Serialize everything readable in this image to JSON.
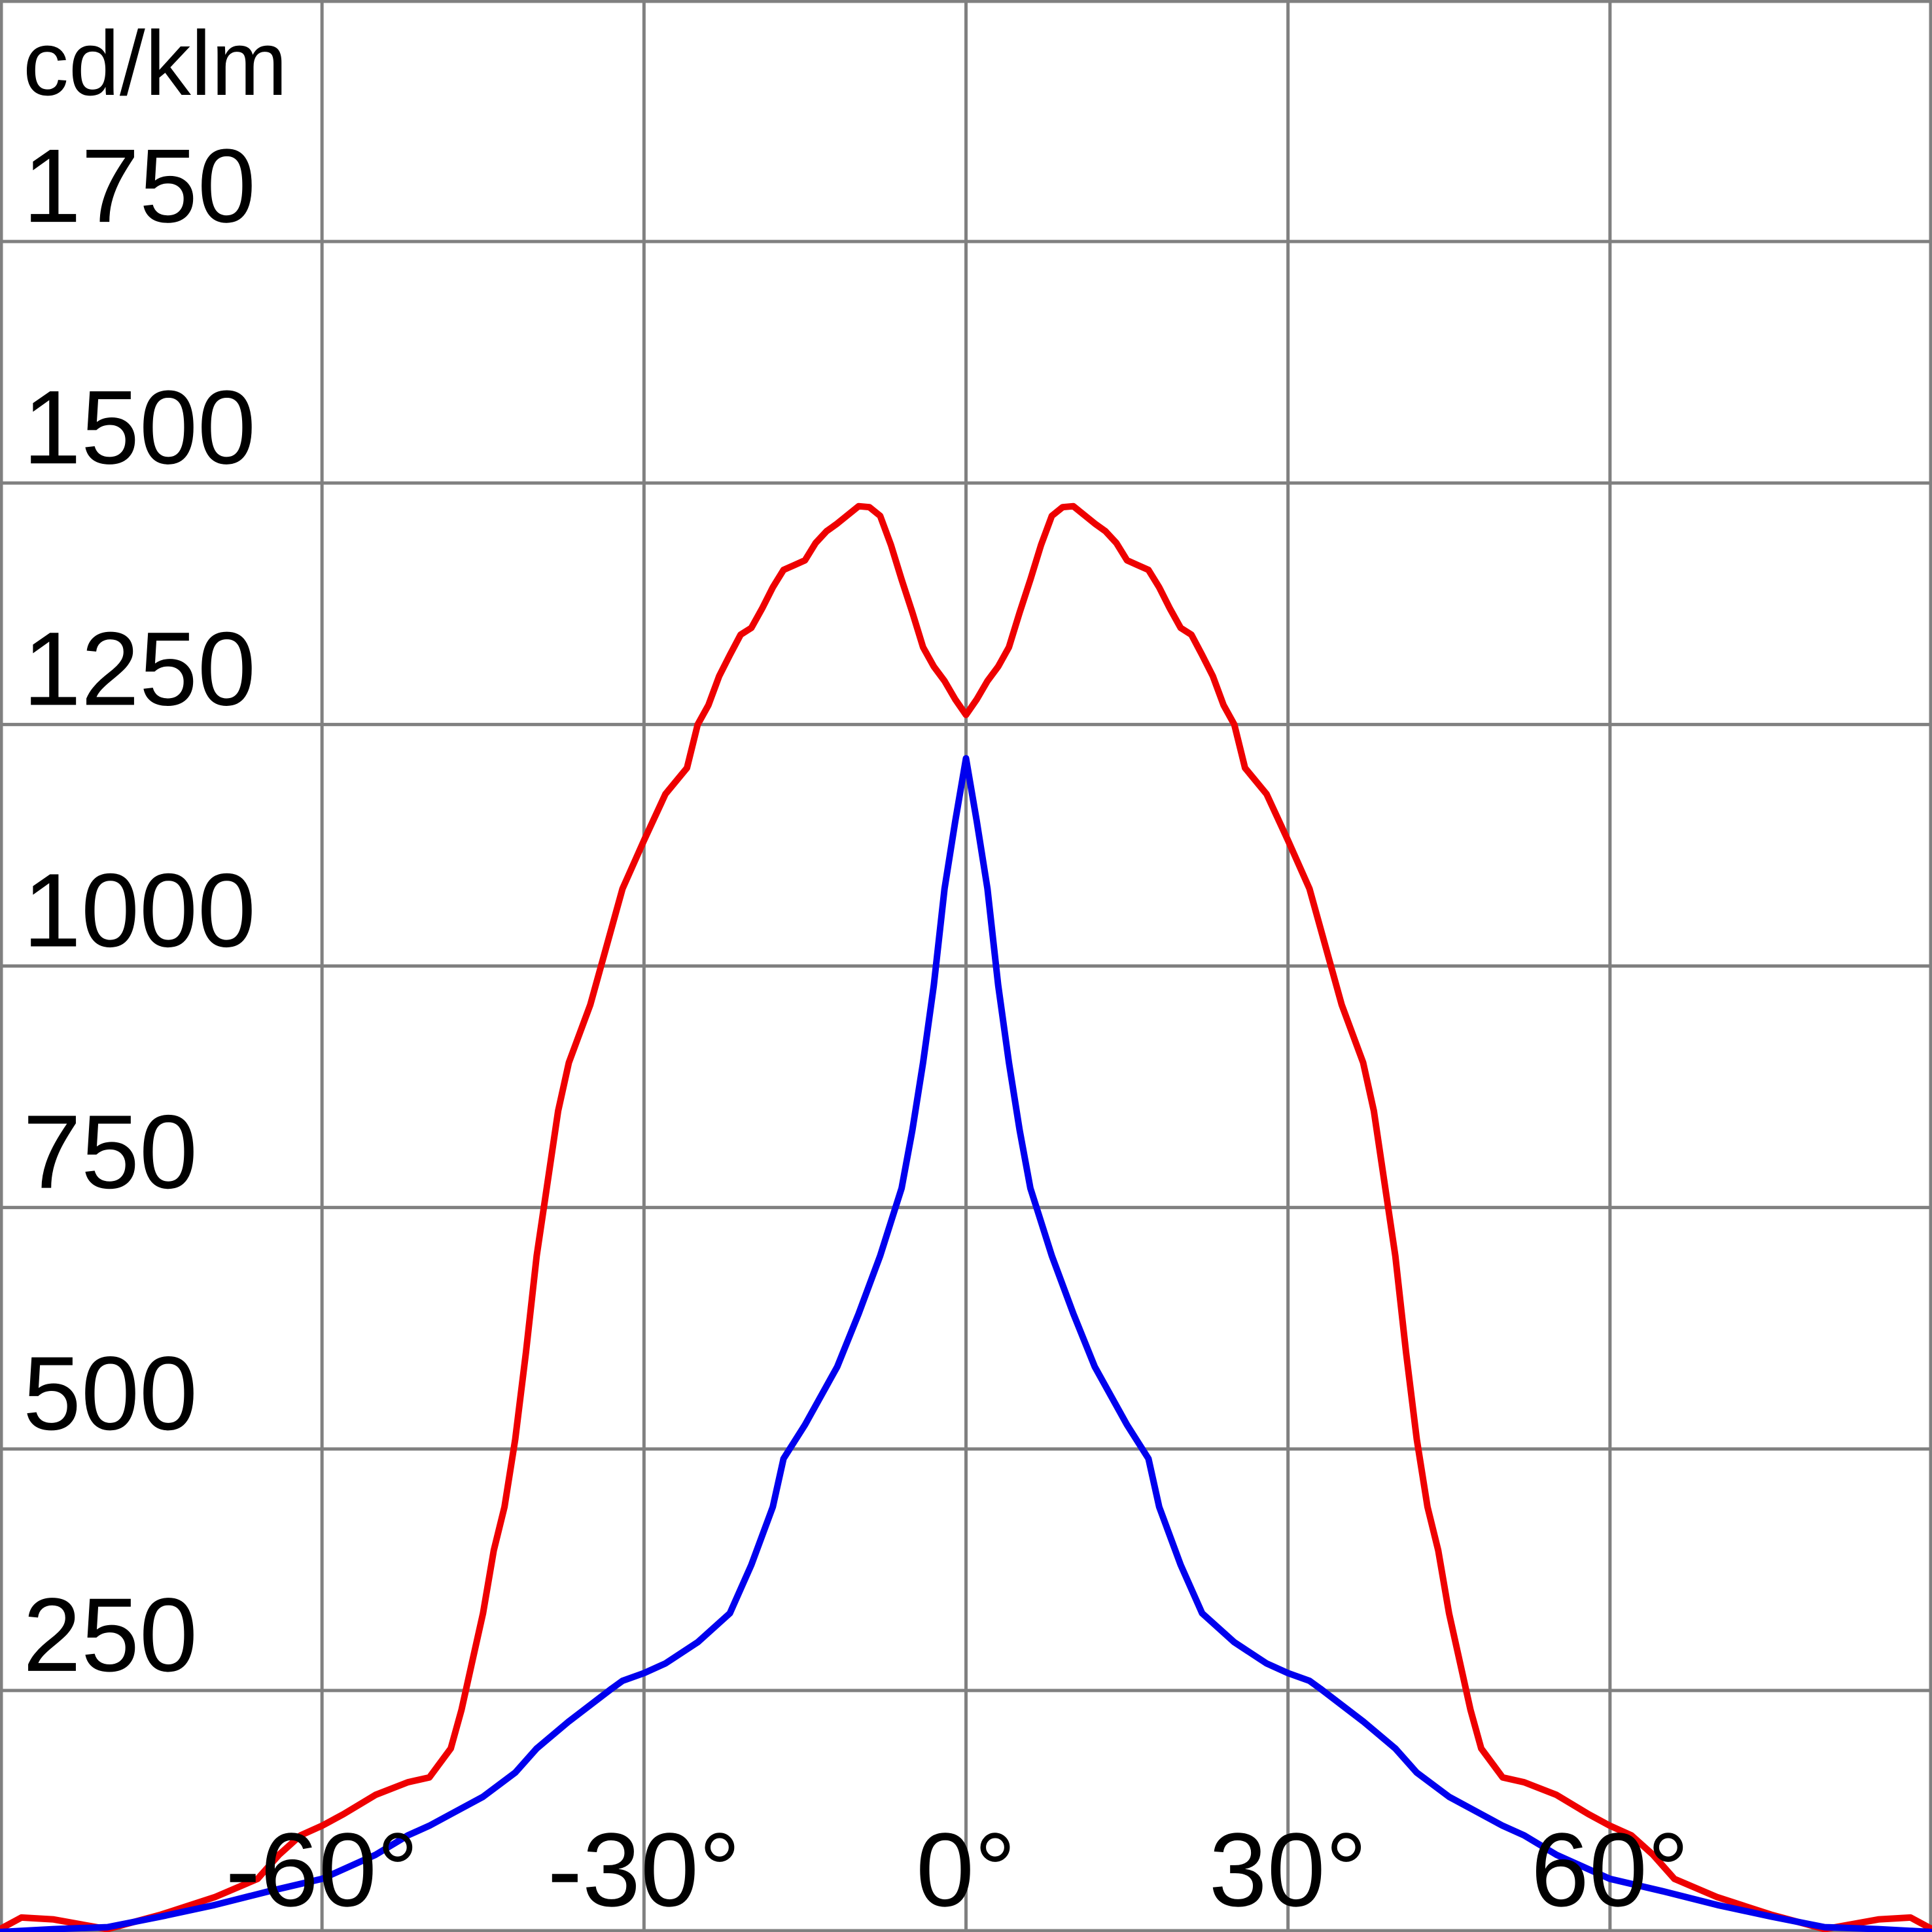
{
  "chart_data": {
    "type": "line",
    "title": "",
    "xlabel": "",
    "ylabel": "cd/klm",
    "xlim": [
      -90,
      90
    ],
    "ylim": [
      0,
      2000
    ],
    "grid": true,
    "x_ticks": [
      -60,
      -30,
      0,
      30,
      60
    ],
    "x_tick_labels": [
      "-60°",
      "-30°",
      "0°",
      "30°",
      "60°"
    ],
    "y_ticks": [
      250,
      500,
      750,
      1000,
      1250,
      1500,
      1750
    ],
    "y_tick_labels": [
      "250",
      "500",
      "750",
      "1000",
      "1250",
      "1500",
      "1750"
    ],
    "series": [
      {
        "color": "#ee0000",
        "x": [
          -90,
          -88,
          -85,
          -80,
          -75,
          -70,
          -66,
          -64,
          -62,
          -60,
          -58,
          -55,
          -52,
          -50,
          -48,
          -47,
          -46,
          -45,
          -44,
          -43,
          -42,
          -41,
          -40,
          -38,
          -37,
          -35,
          -33,
          -32,
          -30,
          -28,
          -26,
          -25,
          -24,
          -23,
          -22,
          -21,
          -20,
          -19,
          -18,
          -17,
          -16,
          -15,
          -14,
          -13,
          -12,
          -11,
          -10,
          -9,
          -8,
          -7,
          -6,
          -5,
          -4,
          -3,
          -2,
          -1,
          0,
          1,
          2,
          3,
          4,
          5,
          6,
          7,
          8,
          9,
          10,
          11,
          12,
          13,
          14,
          15,
          16,
          17,
          18,
          19,
          20,
          21,
          22,
          23,
          24,
          25,
          26,
          28,
          30,
          32,
          33,
          35,
          37,
          38,
          40,
          41,
          42,
          43,
          44,
          45,
          46,
          47,
          48,
          50,
          52,
          55,
          58,
          60,
          62,
          64,
          66,
          70,
          75,
          80,
          85,
          88,
          90
        ],
        "y": [
          3,
          15,
          13,
          3,
          18,
          36,
          55,
          80,
          100,
          110,
          122,
          142,
          155,
          160,
          190,
          230,
          280,
          330,
          395,
          440,
          510,
          600,
          700,
          850,
          900,
          960,
          1040,
          1080,
          1130,
          1178,
          1205,
          1250,
          1270,
          1300,
          1322,
          1343,
          1350,
          1370,
          1392,
          1410,
          1415,
          1420,
          1438,
          1450,
          1458,
          1467,
          1476,
          1475,
          1466,
          1436,
          1400,
          1366,
          1330,
          1310,
          1295,
          1276,
          1260,
          1276,
          1295,
          1310,
          1330,
          1366,
          1400,
          1436,
          1466,
          1475,
          1476,
          1467,
          1458,
          1450,
          1438,
          1420,
          1415,
          1410,
          1392,
          1370,
          1350,
          1343,
          1322,
          1300,
          1270,
          1250,
          1205,
          1178,
          1130,
          1080,
          1040,
          960,
          900,
          850,
          700,
          600,
          510,
          440,
          395,
          330,
          280,
          230,
          190,
          160,
          155,
          142,
          122,
          110,
          100,
          80,
          55,
          36,
          18,
          3,
          13,
          15,
          3
        ]
      },
      {
        "color": "#0000ee",
        "x": [
          -90,
          -85,
          -80,
          -75,
          -70,
          -65,
          -60,
          -55,
          -52,
          -50,
          -48,
          -45,
          -42,
          -40,
          -37,
          -35,
          -33,
          -32,
          -30,
          -28,
          -25,
          -22,
          -20,
          -18,
          -17,
          -15,
          -12,
          -10,
          -8,
          -7,
          -6,
          -5,
          -4,
          -3,
          -2,
          -1,
          0,
          1,
          2,
          3,
          4,
          5,
          6,
          7,
          8,
          10,
          12,
          15,
          17,
          18,
          20,
          22,
          25,
          28,
          30,
          32,
          33,
          35,
          37,
          40,
          42,
          45,
          48,
          50,
          52,
          55,
          60,
          65,
          70,
          75,
          80,
          85,
          90
        ],
        "y": [
          0,
          3,
          5,
          16,
          28,
          42,
          55,
          80,
          100,
          110,
          122,
          140,
          165,
          190,
          218,
          235,
          252,
          260,
          268,
          278,
          300,
          330,
          380,
          440,
          490,
          525,
          585,
          640,
          700,
          735,
          770,
          830,
          900,
          980,
          1080,
          1150,
          1215,
          1150,
          1080,
          980,
          900,
          830,
          770,
          735,
          700,
          640,
          585,
          525,
          490,
          440,
          380,
          330,
          300,
          278,
          268,
          260,
          252,
          235,
          218,
          190,
          165,
          140,
          122,
          110,
          100,
          80,
          55,
          42,
          28,
          16,
          5,
          3,
          0
        ]
      }
    ]
  }
}
